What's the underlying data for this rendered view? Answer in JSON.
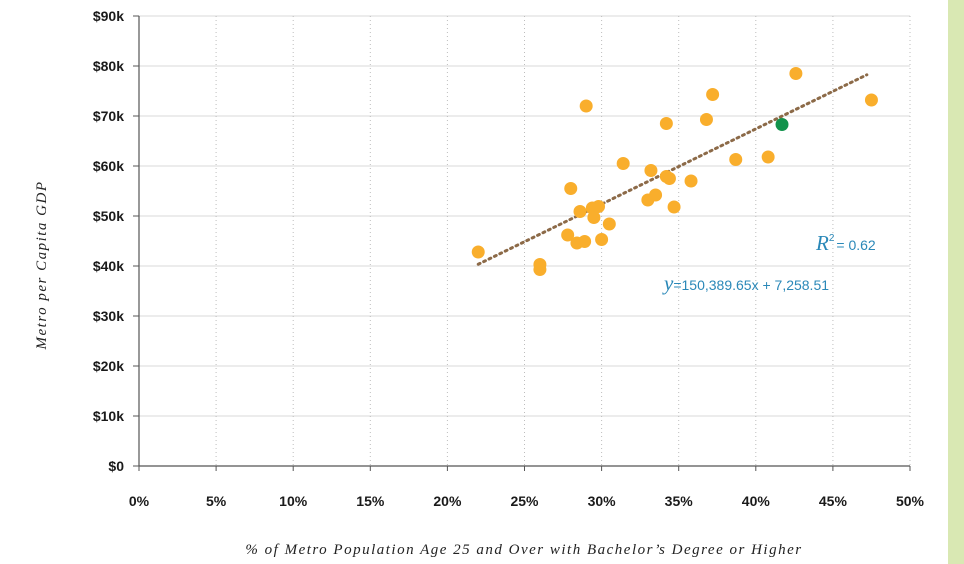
{
  "chart_data": {
    "type": "scatter",
    "xlabel": "% of Metro Population Age 25 and Over with Bachelor’s Degree or Higher",
    "ylabel": "Metro per Capita GDP",
    "xlim": [
      0,
      0.5
    ],
    "ylim": [
      0,
      90000
    ],
    "x_ticks": [
      0,
      0.05,
      0.1,
      0.15,
      0.2,
      0.25,
      0.3,
      0.35,
      0.4,
      0.45,
      0.5
    ],
    "x_tick_labels": [
      "0%",
      "5%",
      "10%",
      "15%",
      "20%",
      "25%",
      "30%",
      "35%",
      "40%",
      "45%",
      "50%"
    ],
    "y_ticks": [
      0,
      10000,
      20000,
      30000,
      40000,
      50000,
      60000,
      70000,
      80000,
      90000
    ],
    "y_tick_labels": [
      "$0",
      "$10k",
      "$20k",
      "$30k",
      "$40k",
      "$50k",
      "$60k",
      "$70k",
      "$80k",
      "$90k"
    ],
    "grid": {
      "vertical": "dotted",
      "horizontal": "solid"
    },
    "points": [
      {
        "x": 0.22,
        "y": 42800
      },
      {
        "x": 0.26,
        "y": 40300
      },
      {
        "x": 0.26,
        "y": 39300
      },
      {
        "x": 0.278,
        "y": 46200
      },
      {
        "x": 0.28,
        "y": 55500
      },
      {
        "x": 0.284,
        "y": 44600
      },
      {
        "x": 0.286,
        "y": 50900
      },
      {
        "x": 0.289,
        "y": 44900
      },
      {
        "x": 0.29,
        "y": 72000
      },
      {
        "x": 0.294,
        "y": 51600
      },
      {
        "x": 0.295,
        "y": 49700
      },
      {
        "x": 0.298,
        "y": 51900
      },
      {
        "x": 0.3,
        "y": 45300
      },
      {
        "x": 0.305,
        "y": 48400
      },
      {
        "x": 0.314,
        "y": 60500
      },
      {
        "x": 0.33,
        "y": 53200
      },
      {
        "x": 0.332,
        "y": 59100
      },
      {
        "x": 0.335,
        "y": 54200
      },
      {
        "x": 0.342,
        "y": 57900
      },
      {
        "x": 0.342,
        "y": 68500
      },
      {
        "x": 0.344,
        "y": 57500
      },
      {
        "x": 0.347,
        "y": 51800
      },
      {
        "x": 0.358,
        "y": 57000
      },
      {
        "x": 0.368,
        "y": 69300
      },
      {
        "x": 0.372,
        "y": 74300
      },
      {
        "x": 0.387,
        "y": 61300
      },
      {
        "x": 0.408,
        "y": 61800
      },
      {
        "x": 0.426,
        "y": 78500
      },
      {
        "x": 0.475,
        "y": 73200
      }
    ],
    "highlight_point": {
      "x": 0.417,
      "y": 68300
    },
    "trendline": {
      "slope": 150389.65,
      "intercept": 7258.51,
      "x_range": [
        0.22,
        0.472
      ],
      "style": "dotted"
    },
    "annotations": {
      "r2_symbol": "R",
      "r2_superscript": "2",
      "r2_text": "= 0.62",
      "eq_symbol": "y",
      "eq_text": "=150,389.65x + 7,258.51"
    }
  },
  "colors": {
    "point": "#f9ae2c",
    "highlight": "#11924b",
    "trendline": "#8c6a48",
    "annotation": "#2a88b8",
    "grid": "#d9d9d9",
    "side_stripe": "#d9e8b3"
  }
}
